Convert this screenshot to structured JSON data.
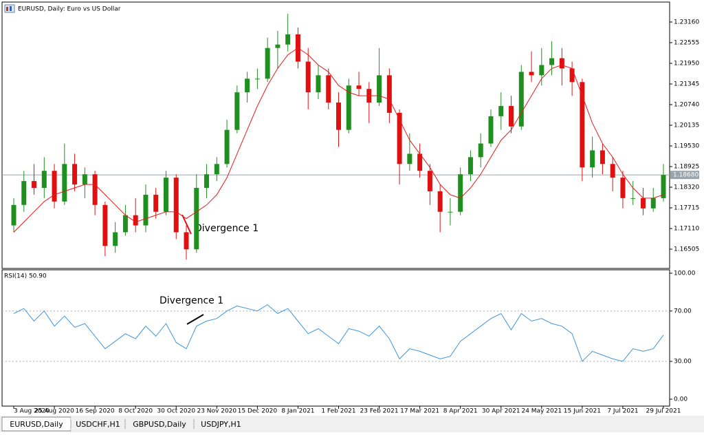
{
  "window": {
    "tabs": [
      "EURUSD,Daily",
      "USDCHF,H1",
      "GBPUSD,Daily",
      "USDJPY,H1"
    ]
  },
  "chart_data": [
    {
      "type": "candlestick",
      "title": "EURUSD, Daily:  Euro vs US Dollar",
      "categories": [
        "3 Aug 2020",
        null,
        null,
        null,
        "25 Aug 2020",
        null,
        null,
        null,
        "16 Sep 2020",
        null,
        null,
        null,
        "8 Oct 2020",
        null,
        null,
        null,
        "30 Oct 2020",
        null,
        null,
        null,
        "23 Nov 2020",
        null,
        null,
        null,
        "15 Dec 2020",
        null,
        null,
        null,
        "8 Jan 2021",
        null,
        null,
        null,
        "1 Feb 2021",
        null,
        null,
        null,
        "23 Feb 2021",
        null,
        null,
        null,
        "17 Mar 2021",
        null,
        null,
        null,
        "8 Apr 2021",
        null,
        null,
        null,
        "30 Apr 2021",
        null,
        null,
        null,
        "24 May 2021",
        null,
        null,
        null,
        "15 Jun 2021",
        null,
        null,
        null,
        "7 Jul 2021",
        null,
        null,
        null,
        "29 Jul 2021"
      ],
      "ohlc": [
        [
          1.172,
          1.18,
          1.17,
          1.178
        ],
        [
          1.178,
          1.188,
          1.176,
          1.185
        ],
        [
          1.185,
          1.19,
          1.181,
          1.183
        ],
        [
          1.183,
          1.192,
          1.18,
          1.188
        ],
        [
          1.188,
          1.19,
          1.177,
          1.179
        ],
        [
          1.179,
          1.196,
          1.178,
          1.19
        ],
        [
          1.19,
          1.193,
          1.182,
          1.184
        ],
        [
          1.184,
          1.189,
          1.18,
          1.187
        ],
        [
          1.187,
          1.188,
          1.175,
          1.178
        ],
        [
          1.178,
          1.179,
          1.163,
          1.166
        ],
        [
          1.166,
          1.173,
          1.164,
          1.17
        ],
        [
          1.17,
          1.178,
          1.169,
          1.175
        ],
        [
          1.175,
          1.18,
          1.17,
          1.172
        ],
        [
          1.172,
          1.184,
          1.17,
          1.181
        ],
        [
          1.181,
          1.183,
          1.174,
          1.176
        ],
        [
          1.176,
          1.188,
          1.175,
          1.186
        ],
        [
          1.186,
          1.187,
          1.168,
          1.17
        ],
        [
          1.17,
          1.172,
          1.162,
          1.165
        ],
        [
          1.165,
          1.187,
          1.164,
          1.183
        ],
        [
          1.183,
          1.19,
          1.18,
          1.187
        ],
        [
          1.187,
          1.192,
          1.185,
          1.19
        ],
        [
          1.19,
          1.203,
          1.189,
          1.2
        ],
        [
          1.2,
          1.213,
          1.199,
          1.211
        ],
        [
          1.211,
          1.217,
          1.208,
          1.215
        ],
        [
          1.215,
          1.218,
          1.212,
          1.215
        ],
        [
          1.215,
          1.227,
          1.214,
          1.224
        ],
        [
          1.224,
          1.229,
          1.218,
          1.225
        ],
        [
          1.225,
          1.234,
          1.223,
          1.228
        ],
        [
          1.228,
          1.23,
          1.218,
          1.22
        ],
        [
          1.22,
          1.224,
          1.206,
          1.211
        ],
        [
          1.211,
          1.219,
          1.209,
          1.216
        ],
        [
          1.216,
          1.218,
          1.206,
          1.208
        ],
        [
          1.208,
          1.211,
          1.195,
          1.2
        ],
        [
          1.2,
          1.215,
          1.199,
          1.213
        ],
        [
          1.213,
          1.217,
          1.21,
          1.212
        ],
        [
          1.212,
          1.214,
          1.202,
          1.208
        ],
        [
          1.208,
          1.224,
          1.207,
          1.216
        ],
        [
          1.216,
          1.218,
          1.202,
          1.205
        ],
        [
          1.205,
          1.206,
          1.184,
          1.19
        ],
        [
          1.19,
          1.199,
          1.188,
          1.193
        ],
        [
          1.193,
          1.196,
          1.186,
          1.188
        ],
        [
          1.188,
          1.19,
          1.178,
          1.182
        ],
        [
          1.182,
          1.184,
          1.17,
          1.176
        ],
        [
          1.176,
          1.18,
          1.172,
          1.176
        ],
        [
          1.176,
          1.189,
          1.175,
          1.187
        ],
        [
          1.187,
          1.194,
          1.185,
          1.192
        ],
        [
          1.192,
          1.199,
          1.189,
          1.196
        ],
        [
          1.196,
          1.206,
          1.195,
          1.204
        ],
        [
          1.204,
          1.211,
          1.2,
          1.207
        ],
        [
          1.207,
          1.21,
          1.199,
          1.201
        ],
        [
          1.201,
          1.219,
          1.2,
          1.217
        ],
        [
          1.217,
          1.223,
          1.214,
          1.216
        ],
        [
          1.216,
          1.224,
          1.213,
          1.219
        ],
        [
          1.219,
          1.226,
          1.216,
          1.221
        ],
        [
          1.221,
          1.224,
          1.213,
          1.218
        ],
        [
          1.218,
          1.22,
          1.21,
          1.214
        ],
        [
          1.214,
          1.215,
          1.185,
          1.189
        ],
        [
          1.189,
          1.198,
          1.186,
          1.194
        ],
        [
          1.194,
          1.196,
          1.187,
          1.19
        ],
        [
          1.19,
          1.192,
          1.182,
          1.186
        ],
        [
          1.186,
          1.188,
          1.177,
          1.18
        ],
        [
          1.18,
          1.185,
          1.178,
          1.18
        ],
        [
          1.18,
          1.183,
          1.175,
          1.177
        ],
        [
          1.177,
          1.183,
          1.176,
          1.18
        ],
        [
          1.18,
          1.19,
          1.179,
          1.1868
        ]
      ],
      "up_color": "#1f8f1f",
      "down_color": "#e01010",
      "ma": {
        "color": "#e81818",
        "values": [
          1.17,
          1.173,
          1.176,
          1.179,
          1.181,
          1.182,
          1.183,
          1.184,
          1.184,
          1.181,
          1.178,
          1.175,
          1.173,
          1.174,
          1.175,
          1.176,
          1.176,
          1.174,
          1.176,
          1.178,
          1.181,
          1.186,
          1.193,
          1.2,
          1.207,
          1.213,
          1.218,
          1.222,
          1.224,
          1.222,
          1.219,
          1.217,
          1.213,
          1.211,
          1.21,
          1.21,
          1.21,
          1.209,
          1.203,
          1.197,
          1.193,
          1.189,
          1.184,
          1.181,
          1.18,
          1.183,
          1.187,
          1.192,
          1.197,
          1.2,
          1.205,
          1.21,
          1.215,
          1.218,
          1.219,
          1.218,
          1.21,
          1.202,
          1.196,
          1.192,
          1.187,
          1.183,
          1.18,
          1.18,
          1.181
        ]
      },
      "ylim": [
        1.1594,
        1.23745
      ],
      "yticks": [
        {
          "value": 1.2316,
          "label": "1.23160"
        },
        {
          "value": 1.22555,
          "label": "1.22555"
        },
        {
          "value": 1.2195,
          "label": "1.21950"
        },
        {
          "value": 1.21345,
          "label": "1.21345"
        },
        {
          "value": 1.2074,
          "label": "1.20740"
        },
        {
          "value": 1.20135,
          "label": "1.20135"
        },
        {
          "value": 1.1953,
          "label": "1.19530"
        },
        {
          "value": 1.18925,
          "label": "1.18925"
        },
        {
          "value": 1.1832,
          "label": "1.18320"
        },
        {
          "value": 1.17715,
          "label": "1.17715"
        },
        {
          "value": 1.1711,
          "label": "1.17110"
        },
        {
          "value": 1.16505,
          "label": "1.16505"
        }
      ],
      "current_price": {
        "value": 1.1868,
        "label": "1.18680"
      },
      "annotation": "Divergence 1"
    },
    {
      "type": "line",
      "title": "RSI(14) 50.90",
      "color": "#3d95dc",
      "values": [
        68,
        72,
        62,
        70,
        58,
        66,
        57,
        60,
        50,
        40,
        46,
        52,
        48,
        58,
        50,
        60,
        45,
        40,
        58,
        62,
        64,
        70,
        74,
        72,
        70,
        75,
        68,
        72,
        62,
        52,
        56,
        50,
        44,
        56,
        54,
        50,
        58,
        48,
        32,
        40,
        38,
        35,
        32,
        34,
        46,
        52,
        58,
        64,
        68,
        55,
        68,
        62,
        64,
        60,
        58,
        52,
        30,
        38,
        35,
        32,
        30,
        40,
        38,
        40,
        50.9
      ],
      "ylim": [
        -5.5,
        102.7
      ],
      "yticks": [
        {
          "value": 100,
          "label": "100.00"
        },
        {
          "value": 70,
          "label": "70.00"
        },
        {
          "value": 30,
          "label": "30.00"
        },
        {
          "value": 0,
          "label": "0.00"
        }
      ],
      "annotation": "Divergence 1"
    }
  ]
}
